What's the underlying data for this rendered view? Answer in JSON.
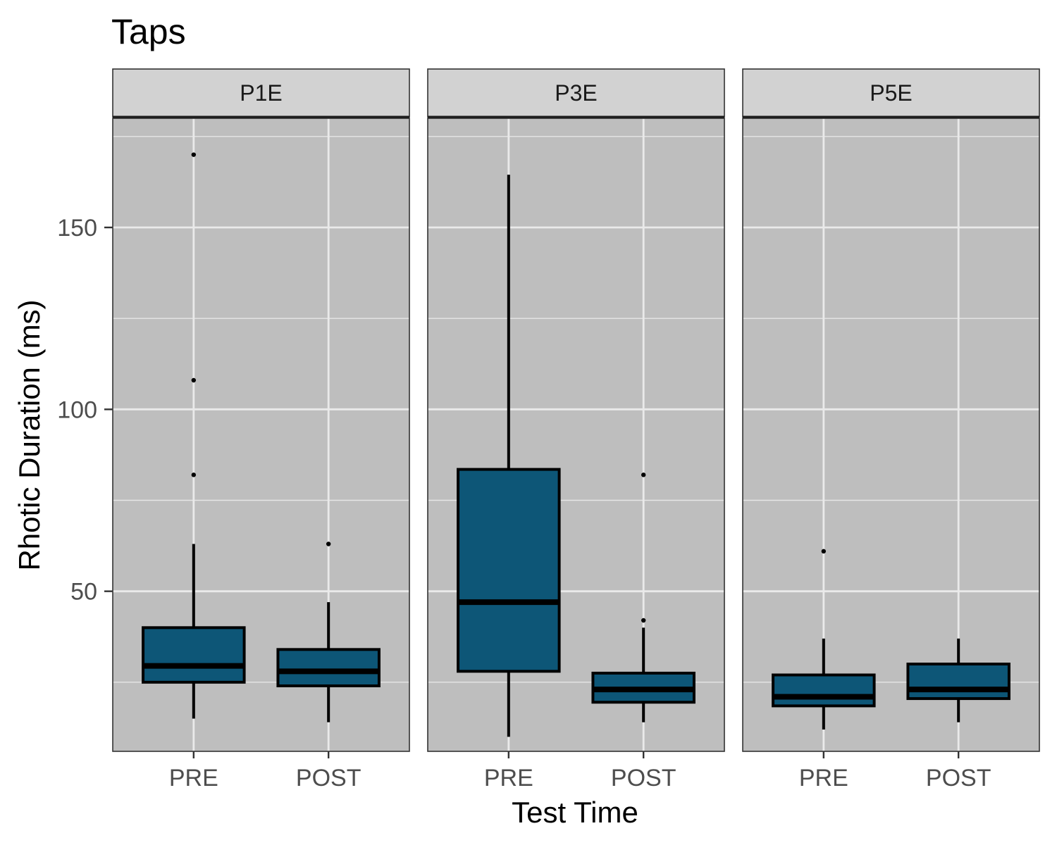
{
  "chart_data": {
    "type": "box",
    "title": "Taps",
    "xlabel": "Test Time",
    "ylabel": "Rhotic Duration (ms)",
    "ylim": [
      6,
      180
    ],
    "y_ticks": [
      50,
      100,
      150
    ],
    "categories": [
      "PRE",
      "POST"
    ],
    "grid": true,
    "fill_color": "#0d5677",
    "panel_background": "#bebebe",
    "strip_background": "#d2d2d2",
    "panels": [
      {
        "label": "P1E",
        "boxes": [
          {
            "category": "PRE",
            "min": 15,
            "q1": 25,
            "median": 29.5,
            "q3": 40,
            "max": 63,
            "outliers": [
              82,
              108,
              170
            ]
          },
          {
            "category": "POST",
            "min": 14,
            "q1": 24,
            "median": 28,
            "q3": 34,
            "max": 47,
            "outliers": [
              63
            ]
          }
        ]
      },
      {
        "label": "P3E",
        "boxes": [
          {
            "category": "PRE",
            "min": 10,
            "q1": 28,
            "median": 47,
            "q3": 83.5,
            "max": 164.5,
            "outliers": []
          },
          {
            "category": "POST",
            "min": 14,
            "q1": 19.5,
            "median": 23,
            "q3": 27.5,
            "max": 40,
            "outliers": [
              42,
              82
            ]
          }
        ]
      },
      {
        "label": "P5E",
        "boxes": [
          {
            "category": "PRE",
            "min": 12,
            "q1": 18.5,
            "median": 21,
            "q3": 27,
            "max": 37,
            "outliers": [
              61
            ]
          },
          {
            "category": "POST",
            "min": 14,
            "q1": 20.5,
            "median": 23,
            "q3": 30,
            "max": 37,
            "outliers": []
          }
        ]
      }
    ]
  }
}
